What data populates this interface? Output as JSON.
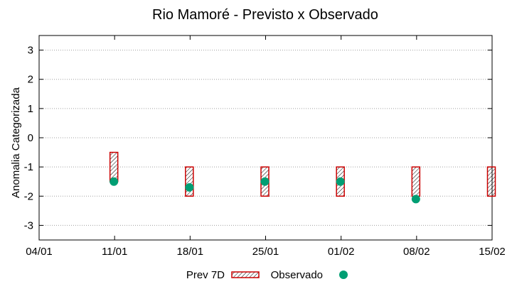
{
  "chart_data": {
    "type": "scatter",
    "title": "Rio Mamoré - Previsto x Observado",
    "xlabel": "",
    "ylabel": "Anomalia Categorizada",
    "ylim": [
      -3.5,
      3.5
    ],
    "yticks": [
      -3,
      -2,
      -1,
      0,
      1,
      2,
      3
    ],
    "xlim": [
      "2021-01-04",
      "2021-02-15"
    ],
    "xticks": [
      "04/01",
      "11/01",
      "18/01",
      "25/01",
      "01/02",
      "08/02",
      "15/02"
    ],
    "grid": true,
    "legend_position": "bottom-center",
    "series": [
      {
        "name": "Prev 7D",
        "kind": "range-box",
        "color": "#cc0000",
        "pattern": "hatched",
        "x": [
          "2021-01-11",
          "2021-01-18",
          "2021-01-25",
          "2021-02-01",
          "2021-02-08",
          "2021-02-15"
        ],
        "low": [
          -1.5,
          -2,
          -2,
          -2,
          -2,
          -2
        ],
        "high": [
          -0.5,
          -1,
          -1,
          -1,
          -1,
          -1
        ]
      },
      {
        "name": "Observado",
        "kind": "point",
        "color": "#009e73",
        "x": [
          "2021-01-11",
          "2021-01-18",
          "2021-01-25",
          "2021-02-01",
          "2021-02-08"
        ],
        "values": [
          -1.5,
          -1.7,
          -1.5,
          -1.5,
          -2.1
        ]
      }
    ]
  }
}
